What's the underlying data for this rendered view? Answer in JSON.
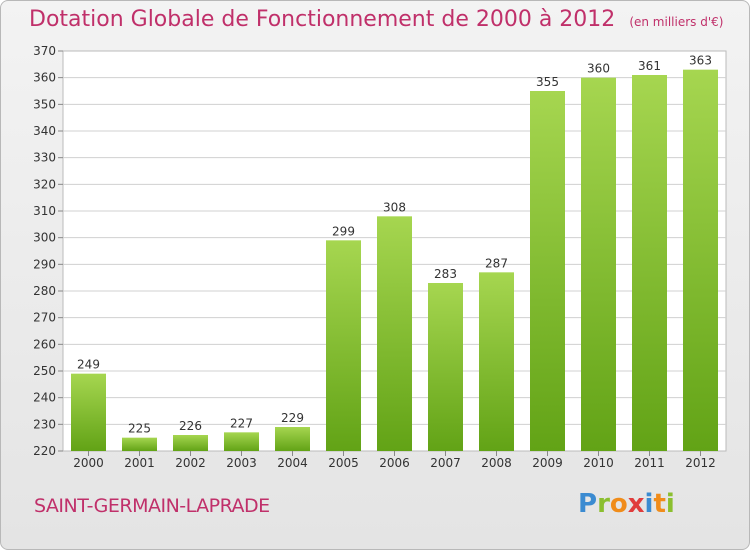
{
  "title": "Dotation Globale de Fonctionnement de 2000 à 2012",
  "subtitle": "(en milliers d'€)",
  "commune": "SAINT-GERMAIN-LAPRADE",
  "logo": [
    "P",
    "r",
    "o",
    "x",
    "i",
    "t",
    "i"
  ],
  "colors": {
    "bar_light": "#a6d650",
    "bar_dark": "#62a316",
    "title": "#c0306a",
    "grid": "#cccccc"
  },
  "chart_data": {
    "type": "bar",
    "title": "Dotation Globale de Fonctionnement de 2000 à 2012",
    "subtitle": "(en milliers d'€)",
    "categories": [
      "2000",
      "2001",
      "2002",
      "2003",
      "2004",
      "2005",
      "2006",
      "2007",
      "2008",
      "2009",
      "2010",
      "2011",
      "2012"
    ],
    "values": [
      249,
      225,
      226,
      227,
      229,
      299,
      308,
      283,
      287,
      355,
      360,
      361,
      363
    ],
    "ylim": [
      220,
      370
    ],
    "yticks": [
      220,
      230,
      240,
      250,
      260,
      270,
      280,
      290,
      300,
      310,
      320,
      330,
      340,
      350,
      360,
      370
    ],
    "grid": true
  }
}
